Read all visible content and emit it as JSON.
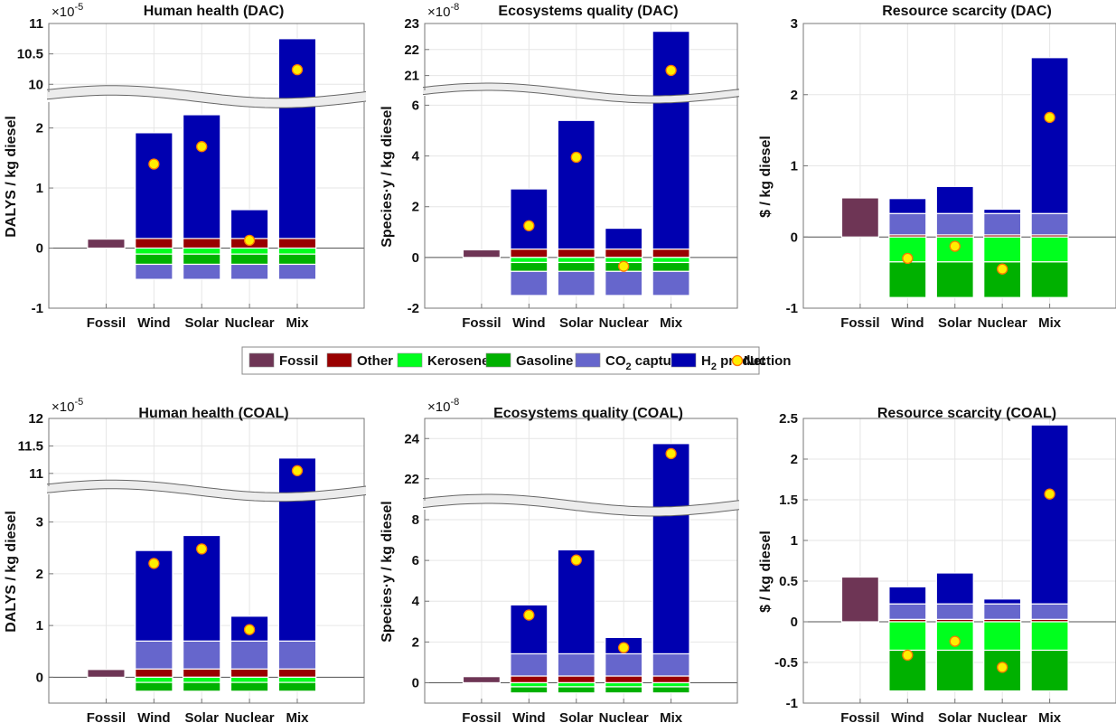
{
  "legend": {
    "items": [
      {
        "key": "fossil",
        "label": "Fossil",
        "color": "#6e3555"
      },
      {
        "key": "other",
        "label": "Other",
        "color": "#990000"
      },
      {
        "key": "kerosene",
        "label": "Kerosene",
        "color": "#00ff1e"
      },
      {
        "key": "gasoline",
        "label": "Gasoline",
        "color": "#00b100"
      },
      {
        "key": "co2",
        "label": "CO",
        "sub": "2",
        "label_after": " capture",
        "color": "#6666cc"
      },
      {
        "key": "h2",
        "label": "H",
        "sub": "2",
        "label_after": " production",
        "color": "#0000b0"
      },
      {
        "key": "net",
        "label": "Net",
        "marker": "circle",
        "color": "#ffee00",
        "edge": "#ff7700"
      }
    ]
  },
  "chart_data": [
    {
      "type": "bar",
      "stacked": true,
      "title": "Human health (DAC)",
      "ylabel": "DALYS / kg diesel",
      "multiplier": "×10",
      "multiplier_exp": "-5",
      "categories": [
        "Fossil",
        "Wind",
        "Solar",
        "Nuclear",
        "Mix"
      ],
      "axis_break": {
        "lower_ylim": [
          -1,
          2.4
        ],
        "upper_ylim": [
          9.9,
          11
        ]
      },
      "yticks_lower": [
        -1,
        0,
        1,
        2
      ],
      "yticks_upper": [
        10,
        10.5,
        11
      ],
      "ytick_labels_lower": [
        "-1",
        "0",
        "1",
        "2"
      ],
      "ytick_labels_upper": [
        "10",
        "10.5",
        "11"
      ],
      "grid": true,
      "series": [
        {
          "name": "Fossil",
          "segments": [
            [
              0,
              0.15
            ],
            null,
            null,
            null,
            null
          ]
        },
        {
          "name": "Other",
          "segments": [
            null,
            [
              0,
              0.16
            ],
            [
              0,
              0.16
            ],
            [
              0,
              0.16
            ],
            [
              0,
              0.16
            ]
          ]
        },
        {
          "name": "Kerosene",
          "segments": [
            null,
            [
              -0.1,
              0
            ],
            [
              -0.1,
              0
            ],
            [
              -0.1,
              0
            ],
            [
              -0.1,
              0
            ]
          ]
        },
        {
          "name": "Gasoline",
          "segments": [
            null,
            [
              -0.27,
              -0.1
            ],
            [
              -0.27,
              -0.1
            ],
            [
              -0.27,
              -0.1
            ],
            [
              -0.27,
              -0.1
            ]
          ]
        },
        {
          "name": "CO2 capture",
          "segments": [
            null,
            [
              -0.52,
              -0.27
            ],
            [
              -0.52,
              -0.27
            ],
            [
              -0.52,
              -0.27
            ],
            [
              -0.52,
              -0.27
            ]
          ]
        },
        {
          "name": "H2 production",
          "segments": [
            null,
            [
              0.16,
              1.92
            ],
            [
              0.16,
              2.22
            ],
            [
              0.16,
              0.64
            ],
            [
              0.16,
              10.75
            ]
          ]
        }
      ],
      "net": [
        null,
        1.4,
        1.69,
        0.13,
        10.24
      ]
    },
    {
      "type": "bar",
      "stacked": true,
      "title": "Ecosystems quality (DAC)",
      "ylabel": "Species·y / kg diesel",
      "multiplier": "×10",
      "multiplier_exp": "-8",
      "categories": [
        "Fossil",
        "Wind",
        "Solar",
        "Nuclear",
        "Mix"
      ],
      "axis_break": {
        "lower_ylim": [
          -2,
          6.3
        ],
        "upper_ylim": [
          20.5,
          23
        ]
      },
      "yticks_lower": [
        -2,
        0,
        2,
        4,
        6
      ],
      "yticks_upper": [
        21,
        22,
        23
      ],
      "ytick_labels_lower": [
        "-2",
        "0",
        "2",
        "4",
        "6"
      ],
      "ytick_labels_upper": [
        "21",
        "22",
        "23"
      ],
      "grid": true,
      "series": [
        {
          "name": "Fossil",
          "segments": [
            [
              0,
              0.3
            ],
            null,
            null,
            null,
            null
          ]
        },
        {
          "name": "Other",
          "segments": [
            null,
            [
              0,
              0.33
            ],
            [
              0,
              0.33
            ],
            [
              0,
              0.33
            ],
            [
              0,
              0.33
            ]
          ]
        },
        {
          "name": "Kerosene",
          "segments": [
            null,
            [
              -0.2,
              0
            ],
            [
              -0.2,
              0
            ],
            [
              -0.2,
              0
            ],
            [
              -0.2,
              0
            ]
          ]
        },
        {
          "name": "Gasoline",
          "segments": [
            null,
            [
              -0.55,
              -0.2
            ],
            [
              -0.55,
              -0.2
            ],
            [
              -0.55,
              -0.2
            ],
            [
              -0.55,
              -0.2
            ]
          ]
        },
        {
          "name": "CO2 capture",
          "segments": [
            null,
            [
              -1.5,
              -0.55
            ],
            [
              -1.5,
              -0.55
            ],
            [
              -1.5,
              -0.55
            ],
            [
              -1.5,
              -0.55
            ]
          ]
        },
        {
          "name": "H2 production",
          "segments": [
            null,
            [
              0.33,
              2.7
            ],
            [
              0.33,
              5.4
            ],
            [
              0.33,
              1.15
            ],
            [
              0.33,
              22.7
            ]
          ]
        }
      ],
      "net": [
        null,
        1.25,
        3.95,
        -0.35,
        21.2
      ]
    },
    {
      "type": "bar",
      "stacked": true,
      "title": "Resource scarcity (DAC)",
      "ylabel": "$ / kg diesel",
      "categories": [
        "Fossil",
        "Wind",
        "Solar",
        "Nuclear",
        "Mix"
      ],
      "ylim": [
        -1,
        3
      ],
      "yticks": [
        -1,
        0,
        1,
        2,
        3
      ],
      "ytick_labels": [
        "-1",
        "0",
        "1",
        "2",
        "3"
      ],
      "grid": true,
      "series": [
        {
          "name": "Fossil",
          "segments": [
            [
              0,
              0.55
            ],
            null,
            null,
            null,
            null
          ]
        },
        {
          "name": "Other",
          "segments": [
            null,
            [
              0,
              0.03
            ],
            [
              0,
              0.03
            ],
            [
              0,
              0.03
            ],
            [
              0,
              0.03
            ]
          ]
        },
        {
          "name": "Kerosene",
          "segments": [
            null,
            [
              -0.35,
              0
            ],
            [
              -0.35,
              0
            ],
            [
              -0.35,
              0
            ],
            [
              -0.35,
              0
            ]
          ]
        },
        {
          "name": "Gasoline",
          "segments": [
            null,
            [
              -0.85,
              -0.35
            ],
            [
              -0.85,
              -0.35
            ],
            [
              -0.85,
              -0.35
            ],
            [
              -0.85,
              -0.35
            ]
          ]
        },
        {
          "name": "CO2 capture",
          "segments": [
            null,
            [
              0.03,
              0.33
            ],
            [
              0.03,
              0.33
            ],
            [
              0.03,
              0.33
            ],
            [
              0.03,
              0.33
            ]
          ]
        },
        {
          "name": "H2 production",
          "segments": [
            null,
            [
              0.33,
              0.54
            ],
            [
              0.33,
              0.71
            ],
            [
              0.33,
              0.39
            ],
            [
              0.33,
              2.52
            ]
          ]
        }
      ],
      "net": [
        null,
        -0.3,
        -0.13,
        -0.45,
        1.68
      ]
    },
    {
      "type": "bar",
      "stacked": true,
      "title": "Human health (COAL)",
      "ylabel": "DALYS / kg diesel",
      "multiplier": "×10",
      "multiplier_exp": "-5",
      "categories": [
        "Fossil",
        "Wind",
        "Solar",
        "Nuclear",
        "Mix"
      ],
      "axis_break": {
        "lower_ylim": [
          -0.5,
          3.5
        ],
        "upper_ylim": [
          10.8,
          12
        ]
      },
      "yticks_lower": [
        0,
        1,
        2,
        3
      ],
      "yticks_upper": [
        11,
        11.5,
        12
      ],
      "ytick_labels_lower": [
        "0",
        "1",
        "2",
        "3"
      ],
      "ytick_labels_upper": [
        "11",
        "11.5",
        "12"
      ],
      "grid": true,
      "series": [
        {
          "name": "Fossil",
          "segments": [
            [
              0,
              0.15
            ],
            null,
            null,
            null,
            null
          ]
        },
        {
          "name": "Other",
          "segments": [
            null,
            [
              0,
              0.16
            ],
            [
              0,
              0.16
            ],
            [
              0,
              0.16
            ],
            [
              0,
              0.16
            ]
          ]
        },
        {
          "name": "Kerosene",
          "segments": [
            null,
            [
              -0.1,
              0
            ],
            [
              -0.1,
              0
            ],
            [
              -0.1,
              0
            ],
            [
              -0.1,
              0
            ]
          ]
        },
        {
          "name": "Gasoline",
          "segments": [
            null,
            [
              -0.27,
              -0.1
            ],
            [
              -0.27,
              -0.1
            ],
            [
              -0.27,
              -0.1
            ],
            [
              -0.27,
              -0.1
            ]
          ]
        },
        {
          "name": "CO2 capture",
          "segments": [
            null,
            [
              0.16,
              0.7
            ],
            [
              0.16,
              0.7
            ],
            [
              0.16,
              0.7
            ],
            [
              0.16,
              0.7
            ]
          ]
        },
        {
          "name": "H2 production",
          "segments": [
            null,
            [
              0.7,
              2.45
            ],
            [
              0.7,
              2.74
            ],
            [
              0.7,
              1.18
            ],
            [
              0.7,
              11.28
            ]
          ]
        }
      ],
      "net": [
        null,
        2.2,
        2.48,
        0.92,
        11.05
      ]
    },
    {
      "type": "bar",
      "stacked": true,
      "title": "Ecosystems quality (COAL)",
      "ylabel": "Species·y / kg diesel",
      "multiplier": "×10",
      "multiplier_exp": "-8",
      "categories": [
        "Fossil",
        "Wind",
        "Solar",
        "Nuclear",
        "Mix"
      ],
      "axis_break": {
        "lower_ylim": [
          -1,
          8.4
        ],
        "upper_ylim": [
          21,
          25
        ]
      },
      "yticks_lower": [
        0,
        2,
        4,
        6,
        8
      ],
      "yticks_upper": [
        22,
        24
      ],
      "ytick_labels_lower": [
        "0",
        "2",
        "4",
        "6",
        "8"
      ],
      "ytick_labels_upper": [
        "22",
        "24"
      ],
      "grid": true,
      "series": [
        {
          "name": "Fossil",
          "segments": [
            [
              0,
              0.3
            ],
            null,
            null,
            null,
            null
          ]
        },
        {
          "name": "Other",
          "segments": [
            null,
            [
              0,
              0.33
            ],
            [
              0,
              0.33
            ],
            [
              0,
              0.33
            ],
            [
              0,
              0.33
            ]
          ]
        },
        {
          "name": "Kerosene",
          "segments": [
            null,
            [
              -0.2,
              0
            ],
            [
              -0.2,
              0
            ],
            [
              -0.2,
              0
            ],
            [
              -0.2,
              0
            ]
          ]
        },
        {
          "name": "Gasoline",
          "segments": [
            null,
            [
              -0.5,
              -0.2
            ],
            [
              -0.5,
              -0.2
            ],
            [
              -0.5,
              -0.2
            ],
            [
              -0.5,
              -0.2
            ]
          ]
        },
        {
          "name": "CO2 capture",
          "segments": [
            null,
            [
              0.33,
              1.42
            ],
            [
              0.33,
              1.42
            ],
            [
              0.33,
              1.42
            ],
            [
              0.33,
              1.42
            ]
          ]
        },
        {
          "name": "H2 production",
          "segments": [
            null,
            [
              1.42,
              3.82
            ],
            [
              1.42,
              6.52
            ],
            [
              1.42,
              2.22
            ],
            [
              1.42,
              23.75
            ]
          ]
        }
      ],
      "net": [
        null,
        3.32,
        6.02,
        1.72,
        23.25
      ]
    },
    {
      "type": "bar",
      "stacked": true,
      "title": "Resource scarcity (COAL)",
      "ylabel": "$ / kg diesel",
      "categories": [
        "Fossil",
        "Wind",
        "Solar",
        "Nuclear",
        "Mix"
      ],
      "ylim": [
        -1,
        2.5
      ],
      "yticks": [
        -1,
        -0.5,
        0,
        0.5,
        1,
        1.5,
        2,
        2.5
      ],
      "ytick_labels": [
        "-1",
        "-0.5",
        "0",
        "0.5",
        "1",
        "1.5",
        "2",
        "2.5"
      ],
      "grid": true,
      "series": [
        {
          "name": "Fossil",
          "segments": [
            [
              0,
              0.55
            ],
            null,
            null,
            null,
            null
          ]
        },
        {
          "name": "Other",
          "segments": [
            null,
            [
              0,
              0.03
            ],
            [
              0,
              0.03
            ],
            [
              0,
              0.03
            ],
            [
              0,
              0.03
            ]
          ]
        },
        {
          "name": "Kerosene",
          "segments": [
            null,
            [
              -0.35,
              0
            ],
            [
              -0.35,
              0
            ],
            [
              -0.35,
              0
            ],
            [
              -0.35,
              0
            ]
          ]
        },
        {
          "name": "Gasoline",
          "segments": [
            null,
            [
              -0.85,
              -0.35
            ],
            [
              -0.85,
              -0.35
            ],
            [
              -0.85,
              -0.35
            ],
            [
              -0.85,
              -0.35
            ]
          ]
        },
        {
          "name": "CO2 capture",
          "segments": [
            null,
            [
              0.03,
              0.22
            ],
            [
              0.03,
              0.22
            ],
            [
              0.03,
              0.22
            ],
            [
              0.03,
              0.22
            ]
          ]
        },
        {
          "name": "H2 production",
          "segments": [
            null,
            [
              0.22,
              0.43
            ],
            [
              0.22,
              0.6
            ],
            [
              0.22,
              0.28
            ],
            [
              0.22,
              2.42
            ]
          ]
        }
      ],
      "net": [
        null,
        -0.41,
        -0.24,
        -0.56,
        1.57
      ]
    }
  ]
}
